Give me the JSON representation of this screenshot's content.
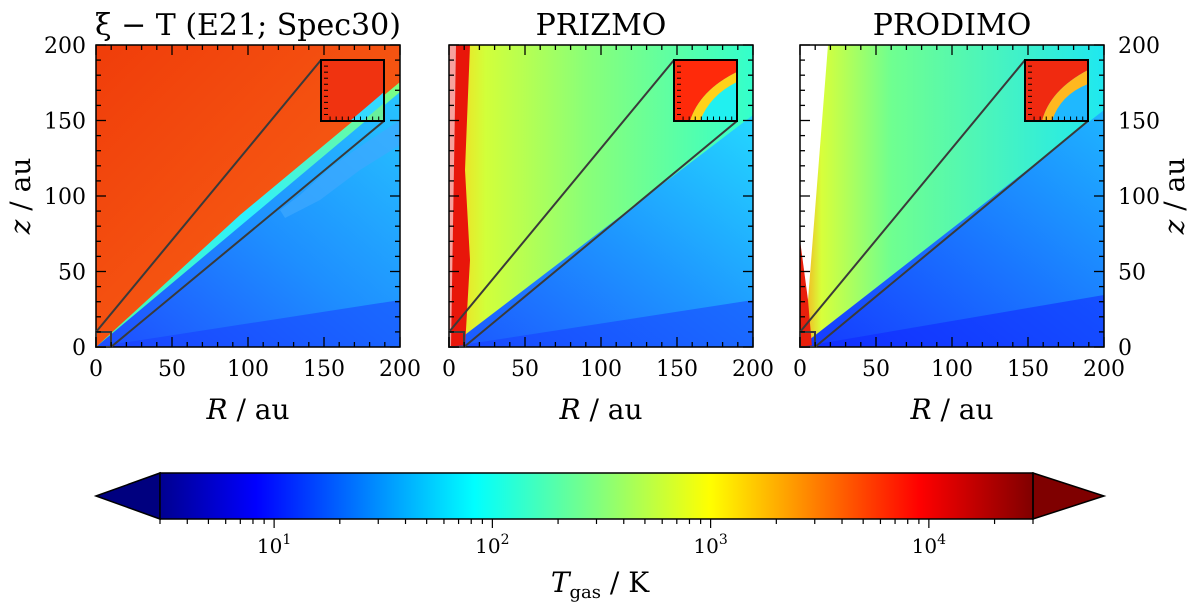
{
  "figure": {
    "colorbar": {
      "label": "T_gas / K",
      "label_main": "T",
      "label_sub": "gas",
      "label_unit": " / K",
      "scale": "log",
      "range_K": [
        3,
        30000
      ],
      "ticks": [
        {
          "value": 10,
          "base": "10",
          "exp": "1"
        },
        {
          "value": 100,
          "base": "10",
          "exp": "2"
        },
        {
          "value": 1000,
          "base": "10",
          "exp": "3"
        },
        {
          "value": 10000,
          "base": "10",
          "exp": "4"
        }
      ],
      "colormap": "jet",
      "extend": "both"
    }
  },
  "chart_data": [
    {
      "type": "heatmap",
      "title": "ξ − T (E21; Spec30)",
      "xlabel_var": "R",
      "xlabel_unit": " / au",
      "ylabel_var": "z",
      "ylabel_unit": " / au",
      "xlim": [
        0,
        200
      ],
      "ylim": [
        0,
        200
      ],
      "xticks": [
        "0",
        "50",
        "100",
        "150",
        "200"
      ],
      "yticks": [
        "0",
        "50",
        "100",
        "150",
        "200"
      ],
      "ylabel_side": "left",
      "zoom_box": {
        "x": [
          0,
          10
        ],
        "y": [
          0,
          10
        ]
      },
      "inset_region": {
        "x": [
          150,
          190
        ],
        "y": [
          150,
          190
        ]
      },
      "description_values": {
        "atmosphere_T_K": 7000,
        "disk_T_K": 30,
        "interface_z_over_R": 0.8
      }
    },
    {
      "type": "heatmap",
      "title": "PRIZMO",
      "xlabel_var": "R",
      "xlabel_unit": " / au",
      "xlim": [
        0,
        200
      ],
      "ylim": [
        0,
        200
      ],
      "xticks": [
        "0",
        "50",
        "100",
        "150",
        "200"
      ],
      "yticks": [],
      "zoom_box": {
        "x": [
          0,
          10
        ],
        "y": [
          0,
          10
        ]
      },
      "inset_region": {
        "x": [
          150,
          190
        ],
        "y": [
          150,
          190
        ]
      },
      "description_values": {
        "atmosphere_T_K": 300,
        "disk_T_K": 30,
        "jet_T_K": 12000,
        "interface_z_over_R": 0.8
      }
    },
    {
      "type": "heatmap",
      "title": "PRODIMO",
      "xlabel_var": "R",
      "xlabel_unit": " / au",
      "ylabel_var": "z",
      "ylabel_unit": " / au",
      "xlim": [
        0,
        200
      ],
      "ylim": [
        0,
        200
      ],
      "xticks": [
        "0",
        "50",
        "100",
        "150",
        "200"
      ],
      "yticks": [
        "0",
        "50",
        "100",
        "150",
        "200"
      ],
      "ylabel_side": "right",
      "zoom_box": {
        "x": [
          0,
          10
        ],
        "y": [
          0,
          10
        ]
      },
      "inset_region": {
        "x": [
          150,
          190
        ],
        "y": [
          150,
          190
        ]
      },
      "description_values": {
        "atmosphere_T_K": 150,
        "disk_T_K": 20,
        "jet_T_K": 8000,
        "interface_z_over_R": 0.8
      }
    }
  ]
}
